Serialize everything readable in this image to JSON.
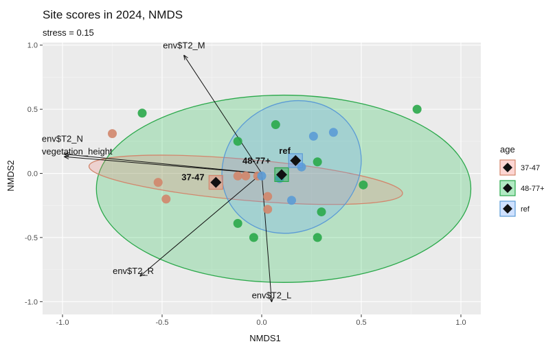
{
  "chart_data": {
    "type": "scatter",
    "title": "Site scores in 2024, NMDS",
    "subtitle": "stress = 0.15",
    "xlabel": "NMDS1",
    "ylabel": "NMDS2",
    "xlim": [
      -1.1,
      1.1
    ],
    "ylim": [
      -1.1,
      1.02
    ],
    "xticks": [
      -1.0,
      -0.5,
      0.0,
      0.5,
      1.0
    ],
    "yticks": [
      -1.0,
      -0.5,
      0.0,
      0.5,
      1.0
    ],
    "xtick_labels": [
      "-1.0",
      "-0.5",
      "0.0",
      "0.5",
      "1.0"
    ],
    "ytick_labels": [
      "-1.0",
      "-0.5",
      "0.0",
      "0.5",
      "1.0"
    ],
    "grid": true,
    "legend_position": "right",
    "legend_title": "age",
    "series": [
      {
        "name": "37-47",
        "color": "#d2866c",
        "fill": "#f8766d",
        "points": [
          [
            -0.75,
            0.31
          ],
          [
            -0.52,
            -0.07
          ],
          [
            -0.48,
            -0.2
          ],
          [
            -0.12,
            -0.02
          ],
          [
            -0.08,
            -0.02
          ],
          [
            -0.02,
            -0.02
          ],
          [
            0.03,
            -0.18
          ],
          [
            0.03,
            -0.28
          ]
        ],
        "centroid": [
          -0.23,
          -0.07
        ],
        "centroid_label": "37-47",
        "ellipse": {
          "center": [
            -0.08,
            -0.05
          ],
          "rx": 0.79,
          "ry": 0.16,
          "angle": -5
        }
      },
      {
        "name": "48-77+",
        "color": "#2aa84a",
        "fill": "#00ba38",
        "points": [
          [
            -0.6,
            0.47
          ],
          [
            -0.12,
            0.25
          ],
          [
            -0.12,
            -0.39
          ],
          [
            -0.04,
            -0.5
          ],
          [
            0.07,
            0.38
          ],
          [
            0.28,
            0.09
          ],
          [
            0.3,
            -0.3
          ],
          [
            0.28,
            -0.5
          ],
          [
            0.51,
            -0.09
          ],
          [
            0.78,
            0.5
          ]
        ],
        "centroid": [
          0.1,
          -0.01
        ],
        "centroid_label": "48-77+",
        "ellipse": {
          "center": [
            0.11,
            -0.12
          ],
          "rx": 0.94,
          "ry": 0.73,
          "angle": 0
        }
      },
      {
        "name": "ref",
        "color": "#5b9bd5",
        "fill": "#619cff",
        "points": [
          [
            0.26,
            0.29
          ],
          [
            0.36,
            0.32
          ],
          [
            0.09,
            -0.04
          ],
          [
            0.2,
            0.05
          ],
          [
            0.15,
            -0.21
          ],
          [
            0.0,
            -0.02
          ]
        ],
        "centroid": [
          0.17,
          0.1
        ],
        "centroid_label": "ref",
        "ellipse": {
          "center": [
            0.15,
            0.05
          ],
          "rx": 0.36,
          "ry": 0.5,
          "angle": 32
        }
      }
    ],
    "vectors": [
      {
        "label": "env$T2_M",
        "x": -0.39,
        "y": 0.92
      },
      {
        "label": "env$T2_N",
        "x": -0.99,
        "y": 0.15
      },
      {
        "label": "vegetation_height",
        "x": -0.99,
        "y": 0.13
      },
      {
        "label": "env$T2_R",
        "x": -0.61,
        "y": -0.8
      },
      {
        "label": "env$T2_L",
        "x": 0.05,
        "y": -1.0
      }
    ]
  }
}
